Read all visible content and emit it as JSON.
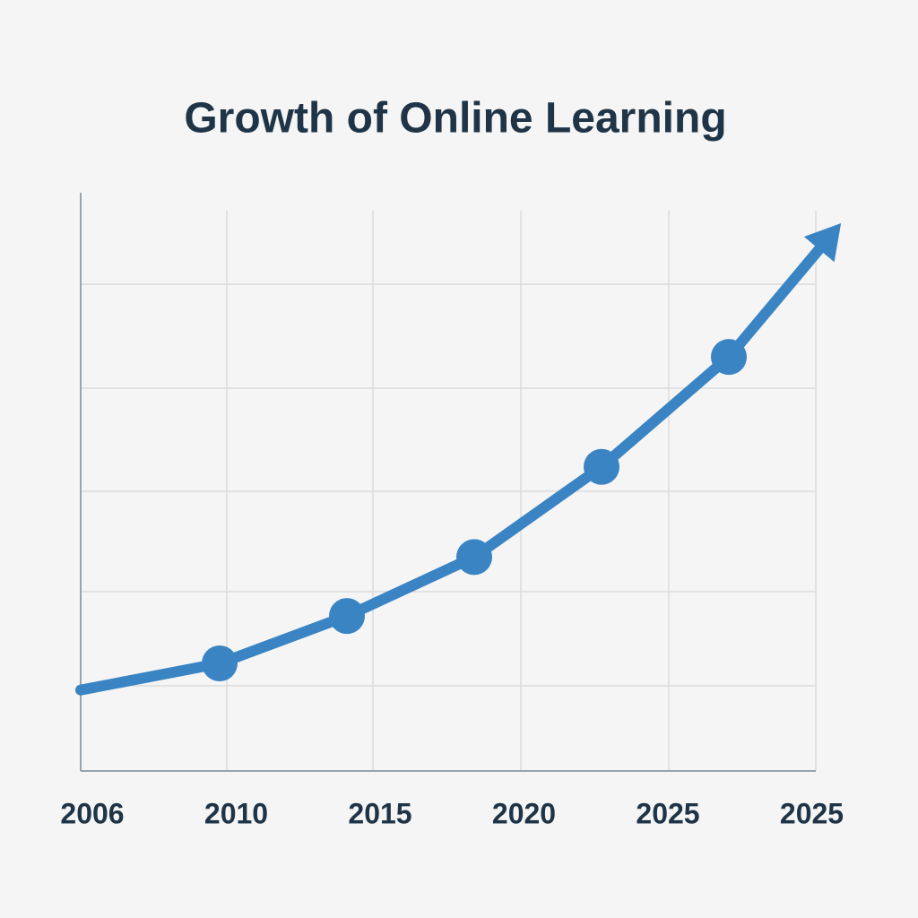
{
  "chart_data": {
    "type": "line",
    "title": "Growth of Online Learning",
    "categories": [
      "2006",
      "2010",
      "2015",
      "2020",
      "2025",
      "2025"
    ],
    "values": [
      14,
      18.6,
      26.8,
      37,
      52.6,
      71.6
    ],
    "color": "#3a84c4",
    "ylim": [
      0,
      100
    ]
  }
}
